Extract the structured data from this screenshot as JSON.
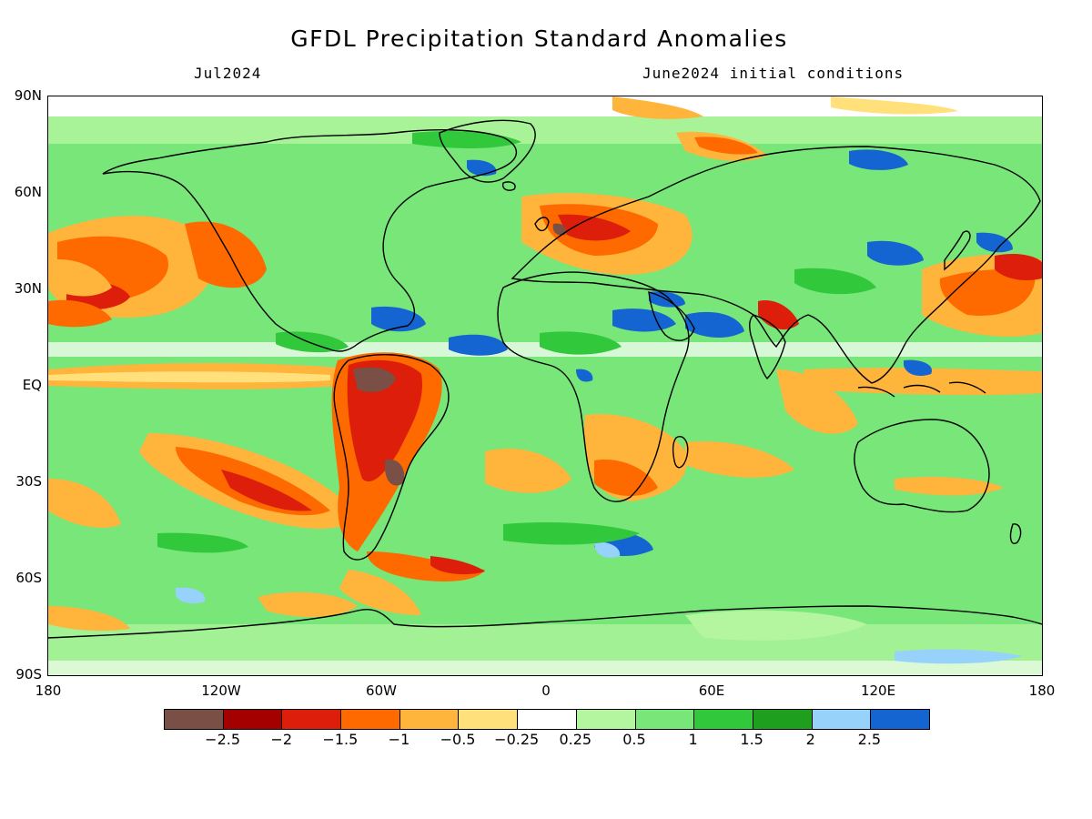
{
  "title": "GFDL Precipitation Standard Anomalies",
  "subtitle_left": "Jul2024",
  "subtitle_right": "June2024 initial conditions",
  "lat_labels": [
    "90N",
    "60N",
    "30N",
    "EQ",
    "30S",
    "60S",
    "90S"
  ],
  "lon_labels": [
    "180",
    "120W",
    "60W",
    "0",
    "60E",
    "120E",
    "180"
  ],
  "colorbar": {
    "colors": [
      "#7a5046",
      "#a50000",
      "#dc1e0a",
      "#ff6a00",
      "#ffb43c",
      "#ffe07a",
      "#ffffff",
      "#b4f5a0",
      "#78e678",
      "#32c83c",
      "#1ea01e",
      "#96d2fa",
      "#1464d2"
    ],
    "labels": [
      "-2.5",
      "-2",
      "-1.5",
      "-1",
      "-0.5",
      "-0.25",
      "0.25",
      "0.5",
      "1",
      "1.5",
      "2",
      "2.5"
    ]
  },
  "map_style": {
    "ocean_background": "#78e678",
    "coastline_color": "#000000"
  }
}
